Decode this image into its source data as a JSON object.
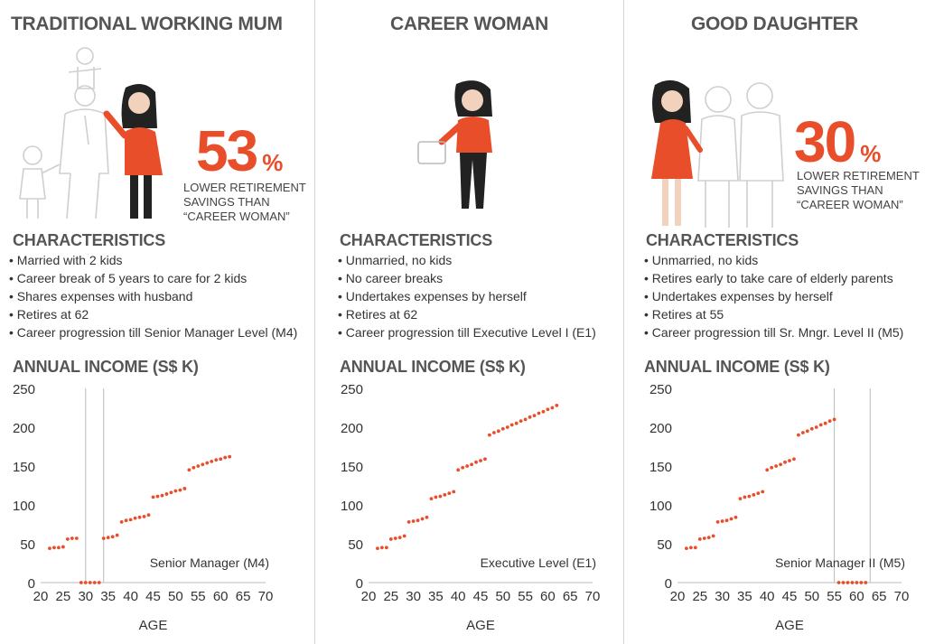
{
  "panels": [
    {
      "title": "TRADITIONAL WORKING MUM",
      "percent": "53",
      "percent_symbol": "%",
      "percent_note": [
        "LOWER RETIREMENT",
        "SAVINGS THAN",
        "“CAREER WOMAN”"
      ],
      "characteristics_heading": "CHARACTERISTICS",
      "characteristics": [
        "Married with 2 kids",
        "Career break of 5 years to care for 2 kids",
        "Shares expenses with husband",
        "Retires at 62",
        "Career progression till Senior Manager Level (M4)"
      ],
      "chart_heading": "ANNUAL INCOME (S$ K)"
    },
    {
      "title": "CAREER WOMAN",
      "characteristics_heading": "CHARACTERISTICS",
      "characteristics": [
        "Unmarried, no kids",
        "No career breaks",
        "Undertakes expenses by herself",
        "Retires at 62",
        "Career progression till Executive Level I (E1)"
      ],
      "chart_heading": "ANNUAL INCOME (S$ K)"
    },
    {
      "title": "GOOD DAUGHTER",
      "percent": "30",
      "percent_symbol": "%",
      "percent_note": [
        "LOWER RETIREMENT",
        "SAVINGS THAN",
        "“CAREER WOMAN”"
      ],
      "characteristics_heading": "CHARACTERISTICS",
      "characteristics": [
        "Unmarried, no kids",
        "Retires early to take care of elderly parents",
        "Undertakes expenses by herself",
        "Retires at 55",
        "Career progression till Sr. Mngr. Level II (M5)"
      ],
      "chart_heading": "ANNUAL INCOME (S$ K)"
    }
  ],
  "colors": {
    "accent": "#e84e2a",
    "text": "#333333",
    "heading": "#555555",
    "axis": "#bbbbbb"
  },
  "chart_data": [
    {
      "type": "scatter",
      "xlabel": "AGE",
      "ylabel": "",
      "xlim": [
        20,
        70
      ],
      "ylim": [
        0,
        250
      ],
      "xticks": [
        20,
        25,
        30,
        35,
        40,
        45,
        50,
        55,
        60,
        65,
        70
      ],
      "yticks": [
        0,
        50,
        100,
        150,
        200,
        250
      ],
      "grid": false,
      "annotation": "Senior Manager (M4)",
      "highlight_range": [
        30,
        34
      ],
      "series": [
        {
          "color": "#e84e2a",
          "x": [
            22,
            23,
            24,
            25,
            26,
            27,
            28,
            29,
            30,
            31,
            32,
            33,
            34,
            35,
            36,
            37,
            38,
            39,
            40,
            41,
            42,
            43,
            44,
            45,
            46,
            47,
            48,
            49,
            50,
            51,
            52,
            53,
            54,
            55,
            56,
            57,
            58,
            59,
            60,
            61,
            62
          ],
          "y": [
            44,
            45,
            45,
            46,
            56,
            57,
            57,
            0,
            0,
            0,
            0,
            0,
            57,
            58,
            59,
            61,
            78,
            80,
            81,
            83,
            84,
            85,
            87,
            110,
            111,
            112,
            114,
            116,
            118,
            119,
            121,
            145,
            148,
            150,
            152,
            154,
            156,
            158,
            159,
            161,
            162
          ]
        }
      ]
    },
    {
      "type": "scatter",
      "xlabel": "AGE",
      "ylabel": "",
      "xlim": [
        20,
        70
      ],
      "ylim": [
        0,
        250
      ],
      "xticks": [
        20,
        25,
        30,
        35,
        40,
        45,
        50,
        55,
        60,
        65,
        70
      ],
      "yticks": [
        0,
        50,
        100,
        150,
        200,
        250
      ],
      "grid": false,
      "annotation": "Executive Level (E1)",
      "series": [
        {
          "color": "#e84e2a",
          "x": [
            22,
            23,
            24,
            25,
            26,
            27,
            28,
            29,
            30,
            31,
            32,
            33,
            34,
            35,
            36,
            37,
            38,
            39,
            40,
            41,
            42,
            43,
            44,
            45,
            46,
            47,
            48,
            49,
            50,
            51,
            52,
            53,
            54,
            55,
            56,
            57,
            58,
            59,
            60,
            61,
            62
          ],
          "y": [
            44,
            45,
            45,
            56,
            57,
            58,
            60,
            78,
            79,
            80,
            82,
            84,
            108,
            110,
            111,
            113,
            115,
            117,
            145,
            148,
            150,
            152,
            155,
            157,
            159,
            190,
            193,
            195,
            198,
            200,
            203,
            205,
            208,
            210,
            213,
            215,
            218,
            220,
            223,
            225,
            228
          ]
        }
      ]
    },
    {
      "type": "scatter",
      "xlabel": "AGE",
      "ylabel": "",
      "xlim": [
        20,
        70
      ],
      "ylim": [
        0,
        250
      ],
      "xticks": [
        20,
        25,
        30,
        35,
        40,
        45,
        50,
        55,
        60,
        65,
        70
      ],
      "yticks": [
        0,
        50,
        100,
        150,
        200,
        250
      ],
      "grid": false,
      "annotation": "Senior Manager II (M5)",
      "highlight_range": [
        55,
        63
      ],
      "series": [
        {
          "color": "#e84e2a",
          "x": [
            22,
            23,
            24,
            25,
            26,
            27,
            28,
            29,
            30,
            31,
            32,
            33,
            34,
            35,
            36,
            37,
            38,
            39,
            40,
            41,
            42,
            43,
            44,
            45,
            46,
            47,
            48,
            49,
            50,
            51,
            52,
            53,
            54,
            55,
            56,
            57,
            58,
            59,
            60,
            61,
            62
          ],
          "y": [
            44,
            45,
            45,
            56,
            57,
            58,
            60,
            78,
            79,
            80,
            82,
            84,
            108,
            110,
            111,
            113,
            115,
            117,
            145,
            148,
            150,
            152,
            155,
            157,
            159,
            190,
            193,
            195,
            198,
            200,
            203,
            205,
            208,
            210,
            0,
            0,
            0,
            0,
            0,
            0,
            0
          ]
        }
      ]
    }
  ]
}
